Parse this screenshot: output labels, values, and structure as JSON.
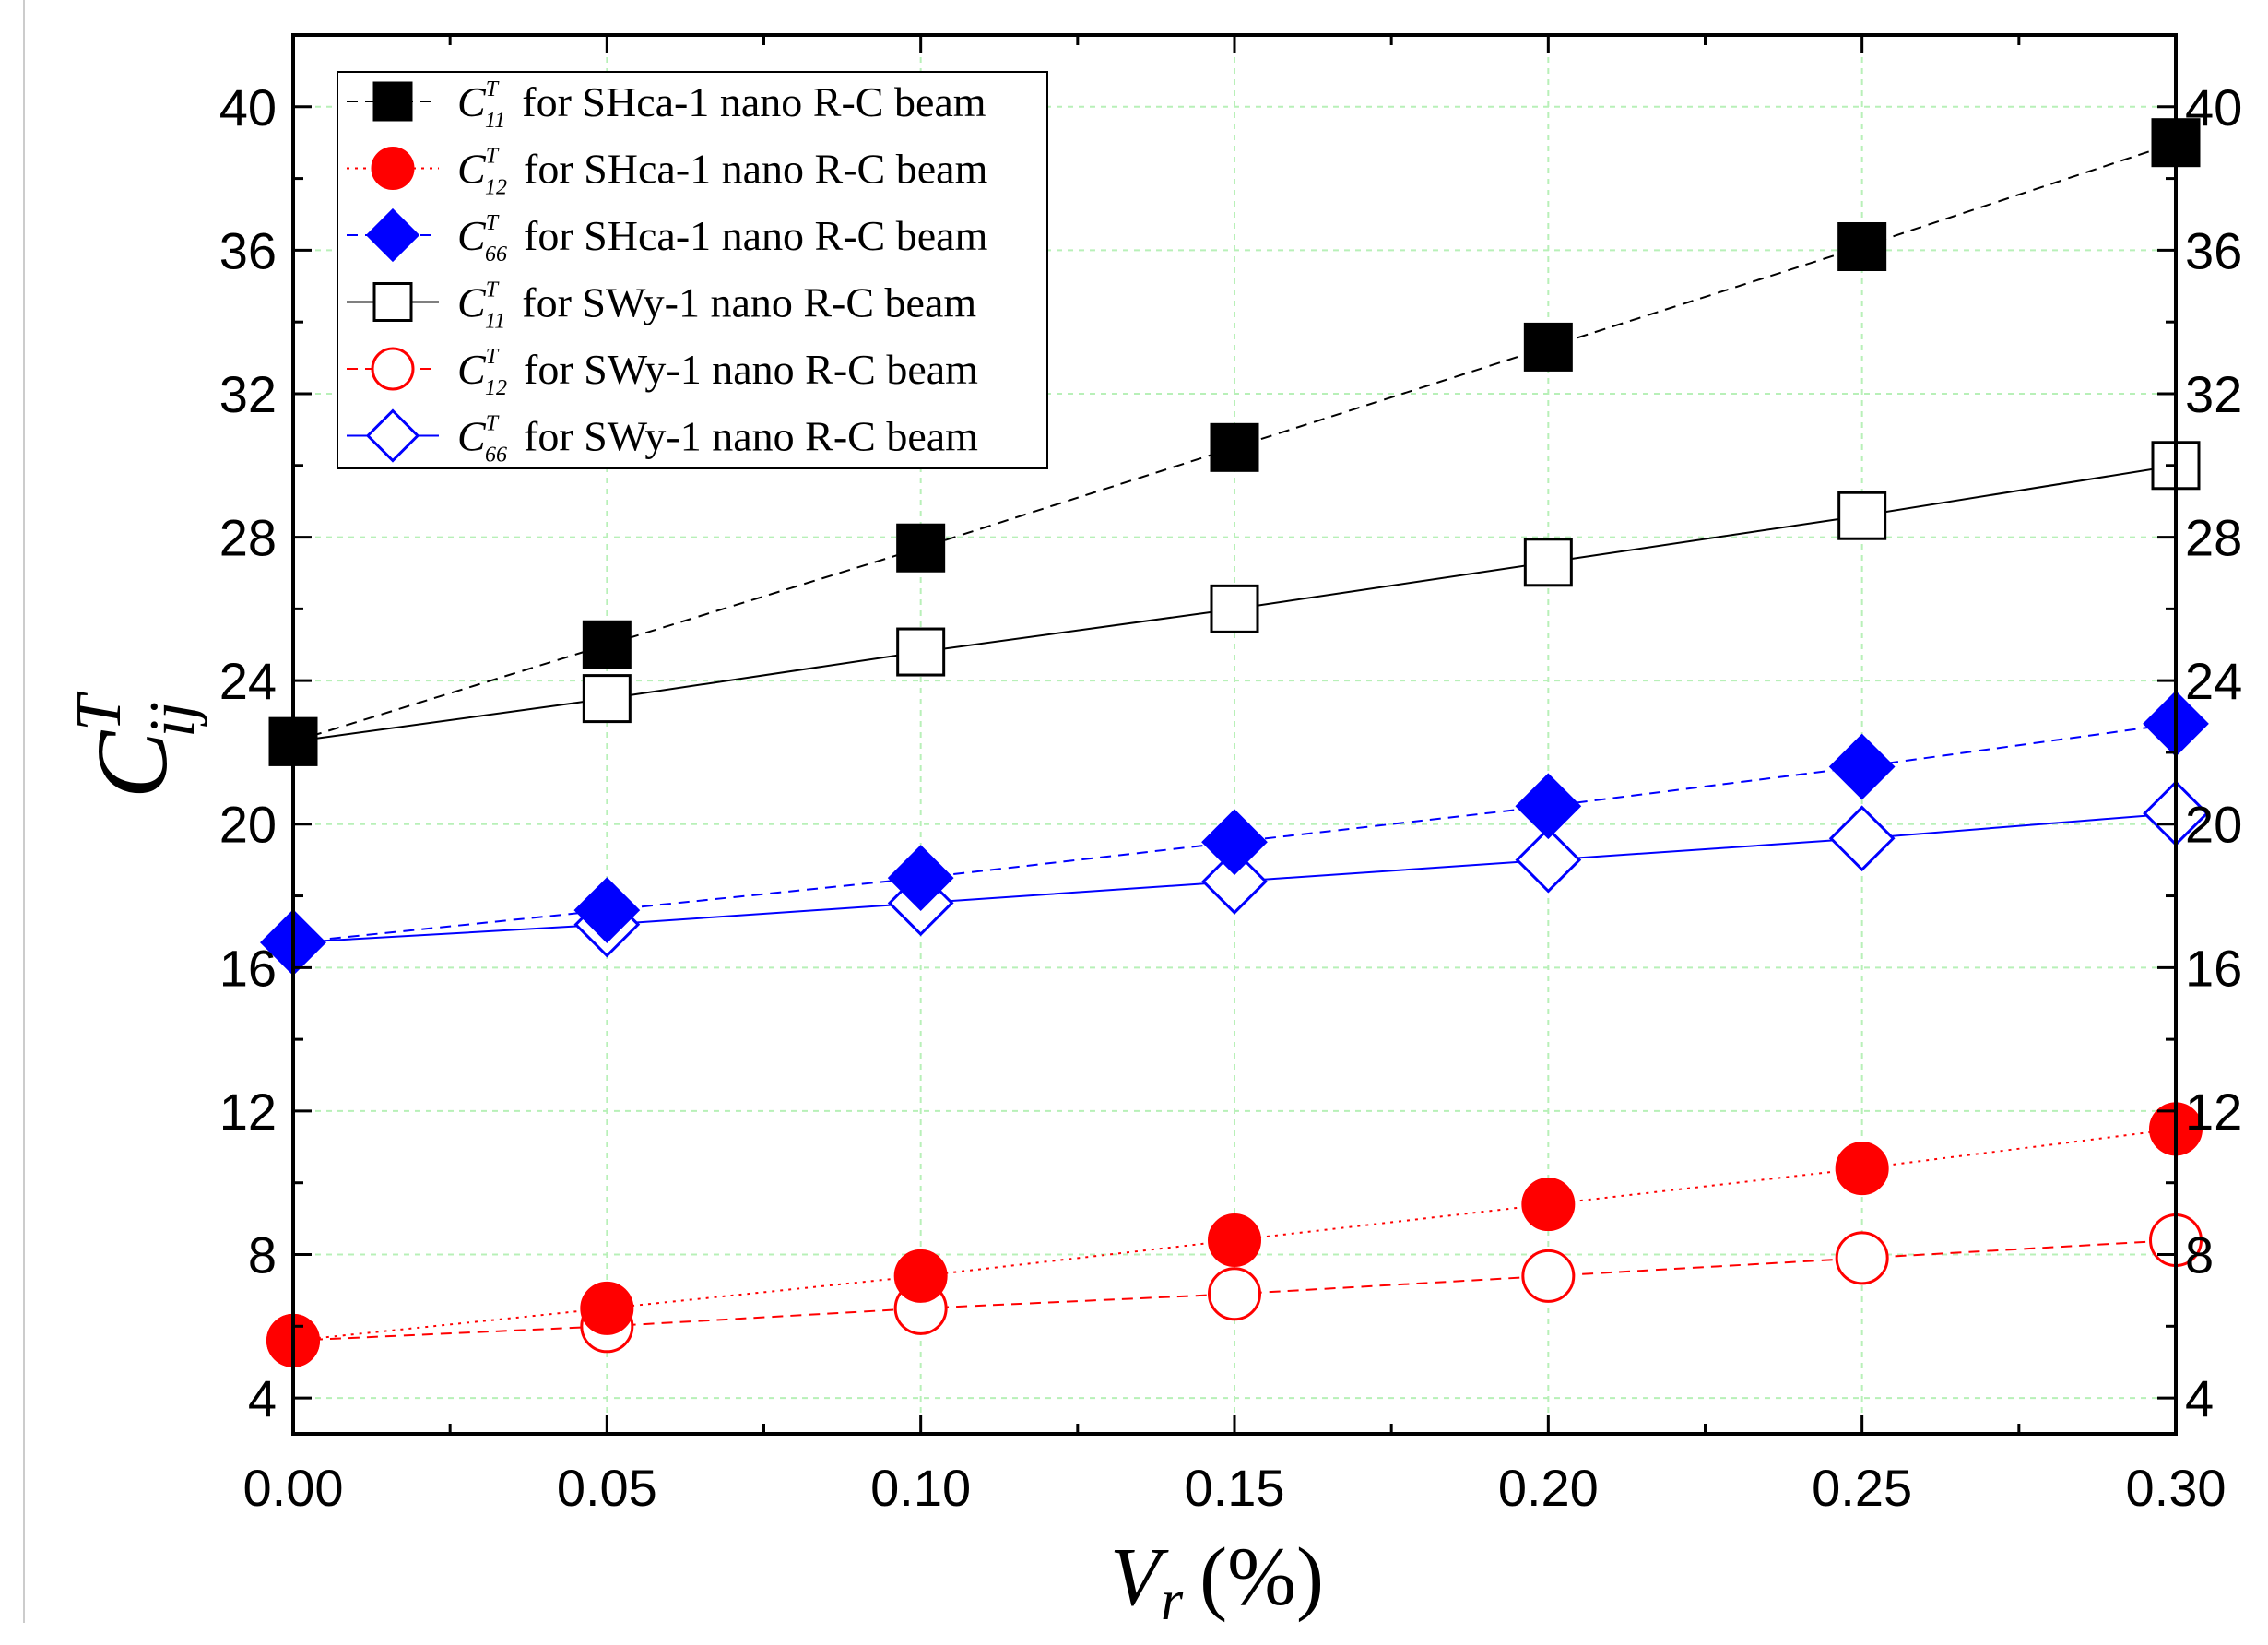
{
  "chart_data": {
    "type": "line",
    "title": "",
    "xlabel": {
      "main": "V",
      "sub": "r",
      "unit": "(%)"
    },
    "ylabel": {
      "main": "C",
      "sup": "T",
      "sub": "ij"
    },
    "xlim": [
      0.0,
      0.3
    ],
    "ylim": [
      3,
      42
    ],
    "x": [
      0.0,
      0.05,
      0.1,
      0.15,
      0.2,
      0.25,
      0.3
    ],
    "x_tick_labels": [
      "0.00",
      "0.05",
      "0.10",
      "0.15",
      "0.20",
      "0.25",
      "0.30"
    ],
    "y_ticks": [
      4,
      8,
      12,
      16,
      20,
      24,
      28,
      32,
      36,
      40
    ],
    "y_ticks_right": true,
    "grid": true,
    "legend_position": "top-left",
    "series": [
      {
        "symbol": "C",
        "sup": "T",
        "sub": "11",
        "label": "for SHca-1 nano R-C beam",
        "marker": "square",
        "filled": true,
        "color": "#000000",
        "line": "dashed",
        "values": [
          22.3,
          25.0,
          27.7,
          30.5,
          33.3,
          36.1,
          39.0
        ]
      },
      {
        "symbol": "C",
        "sup": "T",
        "sub": "12",
        "label": "for SHca-1 nano R-C beam",
        "marker": "circle",
        "filled": true,
        "color": "#ff0000",
        "line": "dotted",
        "values": [
          5.6,
          6.5,
          7.4,
          8.4,
          9.4,
          10.4,
          11.5
        ]
      },
      {
        "symbol": "C",
        "sup": "T",
        "sub": "66",
        "label": "for SHca-1 nano R-C beam",
        "marker": "diamond",
        "filled": true,
        "color": "#0000ff",
        "line": "dashed",
        "values": [
          16.7,
          17.6,
          18.5,
          19.5,
          20.5,
          21.6,
          22.8
        ]
      },
      {
        "symbol": "C",
        "sup": "T",
        "sub": "11",
        "label": "for SWy-1 nano R-C beam",
        "marker": "square",
        "filled": false,
        "color": "#000000",
        "line": "solid",
        "values": [
          22.3,
          23.5,
          24.8,
          26.0,
          27.3,
          28.6,
          30.0
        ]
      },
      {
        "symbol": "C",
        "sup": "T",
        "sub": "12",
        "label": "for SWy-1 nano R-C beam",
        "marker": "circle",
        "filled": false,
        "color": "#ff0000",
        "line": "dashed",
        "values": [
          5.6,
          6.0,
          6.5,
          6.9,
          7.4,
          7.9,
          8.4
        ]
      },
      {
        "symbol": "C",
        "sup": "T",
        "sub": "66",
        "label": "for SWy-1 nano R-C beam",
        "marker": "diamond",
        "filled": false,
        "color": "#0000ff",
        "line": "solid",
        "values": [
          16.7,
          17.2,
          17.8,
          18.4,
          19.0,
          19.6,
          20.3
        ]
      }
    ]
  }
}
